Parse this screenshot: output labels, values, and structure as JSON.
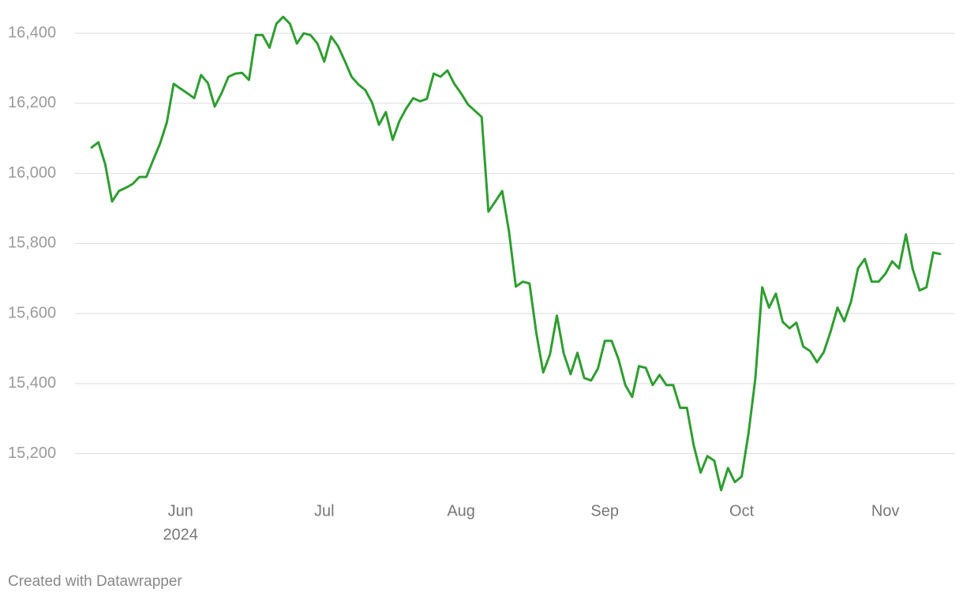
{
  "chart_data": {
    "type": "line",
    "categories": [
      null,
      null,
      null,
      null,
      null,
      null,
      null,
      null,
      null,
      null,
      null,
      null,
      null,
      "Jun",
      null,
      null,
      null,
      null,
      null,
      null,
      null,
      null,
      null,
      null,
      null,
      null,
      null,
      null,
      null,
      null,
      null,
      null,
      null,
      null,
      "Jul",
      null,
      null,
      null,
      null,
      null,
      null,
      null,
      null,
      null,
      null,
      null,
      null,
      null,
      null,
      null,
      null,
      null,
      null,
      null,
      "Aug",
      null,
      null,
      null,
      null,
      null,
      null,
      null,
      null,
      null,
      null,
      null,
      null,
      null,
      null,
      null,
      null,
      null,
      null,
      null,
      null,
      "Sep",
      null,
      null,
      null,
      null,
      null,
      null,
      null,
      null,
      null,
      null,
      null,
      null,
      null,
      null,
      null,
      null,
      null,
      null,
      null,
      "Oct",
      null,
      null,
      null,
      null,
      null,
      null,
      null,
      null,
      null,
      null,
      null,
      null,
      null,
      null,
      null,
      null,
      null,
      null,
      null,
      null,
      "Nov",
      null,
      null,
      null,
      null,
      null,
      null,
      null,
      null
    ],
    "year_label": "2024",
    "values": [
      16074,
      16089,
      16026,
      15920,
      15950,
      15959,
      15970,
      15990,
      15990,
      16038,
      16085,
      16146,
      16256,
      16242,
      16229,
      16215,
      16281,
      16258,
      16191,
      16229,
      16276,
      16285,
      16287,
      16267,
      16395,
      16395,
      16359,
      16427,
      16447,
      16427,
      16371,
      16400,
      16395,
      16371,
      16319,
      16391,
      16364,
      16321,
      16276,
      16254,
      16238,
      16202,
      16139,
      16175,
      16096,
      16150,
      16186,
      16215,
      16206,
      16213,
      16285,
      16276,
      16294,
      16256,
      16229,
      16197,
      16179,
      16161,
      15891,
      15920,
      15950,
      15835,
      15677,
      15691,
      15686,
      15544,
      15432,
      15484,
      15594,
      15486,
      15427,
      15488,
      15416,
      15409,
      15443,
      15522,
      15522,
      15470,
      15396,
      15362,
      15450,
      15445,
      15396,
      15425,
      15396,
      15396,
      15331,
      15331,
      15223,
      15146,
      15193,
      15180,
      15096,
      15159,
      15119,
      15135,
      15259,
      15414,
      15675,
      15617,
      15657,
      15576,
      15558,
      15574,
      15506,
      15493,
      15461,
      15490,
      15549,
      15617,
      15578,
      15635,
      15729,
      15756,
      15691,
      15691,
      15713,
      15749,
      15729,
      15826,
      15727,
      15666,
      15675,
      15774,
      15770
    ],
    "color": "#2e9e30",
    "ylim": [
      15100,
      16450
    ],
    "yticks": [
      {
        "value": 15200,
        "label": "15,200"
      },
      {
        "value": 15400,
        "label": "15,400"
      },
      {
        "value": 15600,
        "label": "15,600"
      },
      {
        "value": 15800,
        "label": "15,800"
      },
      {
        "value": 16000,
        "label": "16,000"
      },
      {
        "value": 16200,
        "label": "16,200"
      },
      {
        "value": 16400,
        "label": "16,400"
      }
    ],
    "grid": true,
    "footer": "Created with Datawrapper"
  }
}
